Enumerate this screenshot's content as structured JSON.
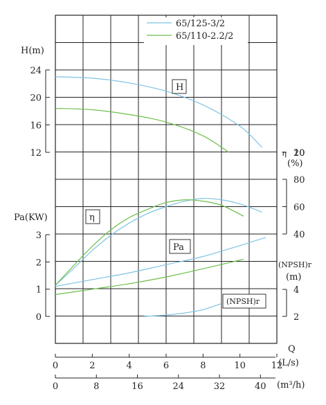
{
  "chart_data": {
    "type": "line",
    "legend": {
      "placement": "top-right",
      "items": [
        {
          "label": "65/125-3/2",
          "color": "#7ec3e3"
        },
        {
          "label": "65/110-2.2/2",
          "color": "#6cbf4a"
        }
      ]
    },
    "x_axes": {
      "flow_ls": {
        "label": "(L/s)",
        "range": [
          0,
          12
        ],
        "ticks": [
          "0",
          "2",
          "4",
          "6",
          "8",
          "10",
          "12"
        ]
      },
      "flow_m3h": {
        "label": "(m³/h)",
        "range": [
          0,
          43.2
        ],
        "ticks": [
          "0",
          "8",
          "16",
          "24",
          "32",
          "40"
        ]
      },
      "q_label": "Q"
    },
    "y_axes": {
      "head": {
        "label": "H(m)",
        "range": [
          12,
          24
        ],
        "ticks": [
          "12",
          "16",
          "20",
          "24"
        ]
      },
      "efficiency": {
        "label": "η",
        "unit": "(%)",
        "range": [
          40,
          80
        ],
        "ticks": [
          "40",
          "60",
          "80"
        ],
        "top_ticks": [
          "20",
          "10"
        ]
      },
      "power": {
        "label": "Pa(KW)",
        "range": [
          0,
          3
        ],
        "ticks": [
          "0",
          "1",
          "2",
          "3"
        ]
      },
      "npsh": {
        "label": "(NPSH)r",
        "unit": "(m)",
        "range": [
          2,
          4
        ],
        "ticks": [
          "2",
          "4"
        ]
      }
    },
    "curve_labels": {
      "head": "H",
      "efficiency": "η",
      "power": "Pa",
      "npsh": "(NPSH)r"
    },
    "series": [
      {
        "name": "65/125-3/2",
        "quantity": "head",
        "color": "#7ec3e3",
        "x": [
          0,
          2,
          4,
          6,
          8,
          10,
          11.2
        ],
        "y": [
          23.0,
          22.8,
          22.1,
          20.9,
          18.9,
          15.8,
          12.7
        ]
      },
      {
        "name": "65/110-2.2/2",
        "quantity": "head",
        "color": "#6cbf4a",
        "x": [
          0,
          2,
          4,
          6,
          8,
          9.4
        ],
        "y": [
          18.4,
          18.2,
          17.5,
          16.4,
          14.4,
          12.0
        ]
      },
      {
        "name": "65/125-3/2",
        "quantity": "efficiency",
        "color": "#7ec3e3",
        "x": [
          0,
          1,
          2,
          3,
          4,
          5,
          6,
          7,
          8,
          9,
          10,
          11.2
        ],
        "y": [
          0,
          15,
          28,
          39,
          48,
          55,
          60,
          64,
          66,
          65,
          62,
          56
        ]
      },
      {
        "name": "65/110-2.2/2",
        "quantity": "efficiency",
        "color": "#6cbf4a",
        "x": [
          0,
          1,
          2,
          3,
          4,
          5,
          6,
          7,
          8,
          9,
          10.2
        ],
        "y": [
          0,
          17,
          31,
          43,
          52,
          58,
          63,
          65,
          64,
          61,
          53
        ]
      },
      {
        "name": "65/125-3/2",
        "quantity": "power",
        "color": "#7ec3e3",
        "x": [
          0,
          2,
          4,
          6,
          8,
          10,
          11.4
        ],
        "y": [
          1.1,
          1.35,
          1.6,
          1.9,
          2.2,
          2.6,
          2.9
        ]
      },
      {
        "name": "65/110-2.2/2",
        "quantity": "power",
        "color": "#6cbf4a",
        "x": [
          0,
          2,
          4,
          6,
          8,
          10.2
        ],
        "y": [
          0.8,
          1.0,
          1.2,
          1.45,
          1.75,
          2.1
        ]
      },
      {
        "name": "65/125-3/2",
        "quantity": "npsh",
        "color": "#7ec3e3",
        "x": [
          4.8,
          6,
          7,
          8,
          9
        ],
        "y": [
          2.0,
          2.1,
          2.25,
          2.5,
          2.95
        ]
      }
    ],
    "grid": true
  }
}
